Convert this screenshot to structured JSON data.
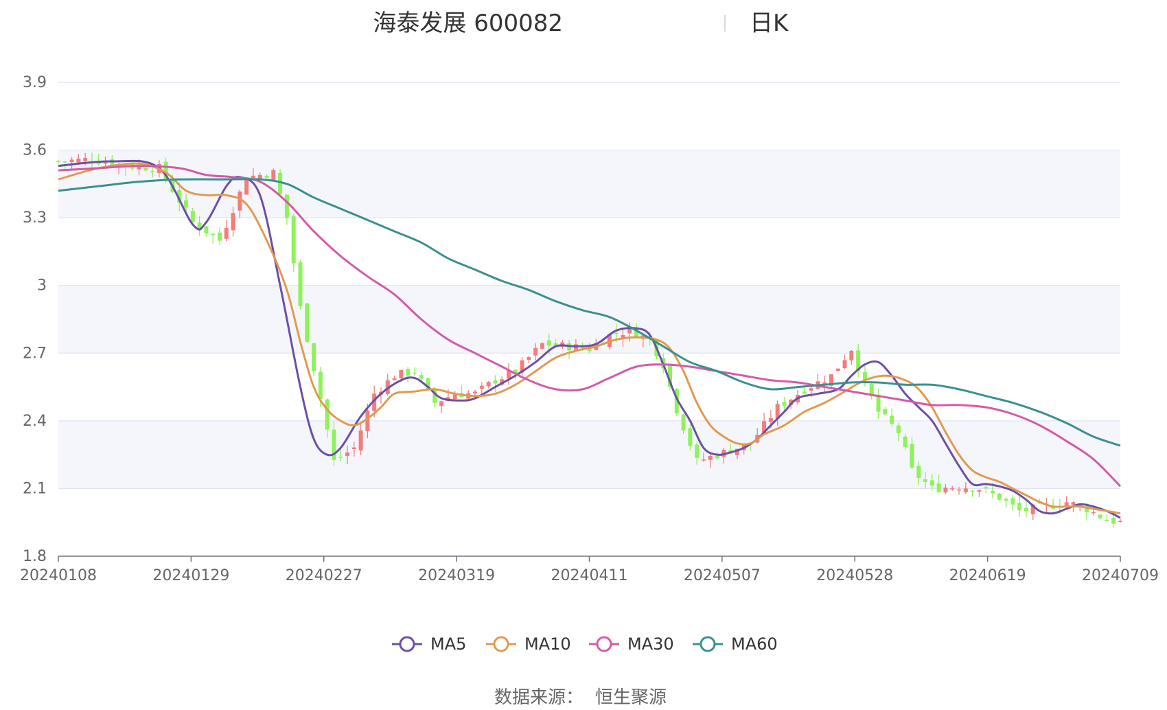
{
  "header": {
    "title": "海泰发展 600082",
    "period": "日K"
  },
  "footer": {
    "source_label": "数据来源：",
    "source_name": "恒生聚源"
  },
  "colors": {
    "up": "#f47c7c",
    "down": "#8ef25a",
    "MA5": "#6b4fa8",
    "MA10": "#e29a4f",
    "MA30": "#d45aa8",
    "MA60": "#3a9090",
    "grid": "#dfe4f2",
    "band": "#f5f6fb"
  },
  "chart_data": {
    "type": "candlestick",
    "title": "海泰发展 600082",
    "subtitle": "日K",
    "ylim": [
      1.8,
      3.9
    ],
    "y_ticks": [
      "3.9",
      "3.6",
      "3.3",
      "3",
      "2.7",
      "2.4",
      "2.1",
      "1.8"
    ],
    "x_tick_labels": [
      "20240108",
      "20240129",
      "20240227",
      "20240319",
      "20240411",
      "20240507",
      "20240528",
      "20240619",
      "20240709"
    ],
    "candles_count": 120,
    "close_path": [
      [
        0,
        3.55
      ],
      [
        5,
        3.56
      ],
      [
        10,
        3.53
      ],
      [
        15,
        3.52
      ],
      [
        20,
        3.28
      ],
      [
        24,
        3.2
      ],
      [
        28,
        3.48
      ],
      [
        32,
        3.5
      ],
      [
        34,
        3.3
      ],
      [
        36,
        2.9
      ],
      [
        39,
        2.5
      ],
      [
        41,
        2.22
      ],
      [
        44,
        2.28
      ],
      [
        47,
        2.52
      ],
      [
        50,
        2.6
      ],
      [
        53,
        2.62
      ],
      [
        56,
        2.48
      ],
      [
        59,
        2.52
      ],
      [
        62,
        2.52
      ],
      [
        65,
        2.58
      ],
      [
        68,
        2.62
      ],
      [
        72,
        2.74
      ],
      [
        76,
        2.73
      ],
      [
        79,
        2.72
      ],
      [
        82,
        2.78
      ],
      [
        85,
        2.8
      ],
      [
        88,
        2.76
      ],
      [
        90,
        2.65
      ],
      [
        92,
        2.45
      ],
      [
        95,
        2.22
      ],
      [
        99,
        2.26
      ],
      [
        103,
        2.3
      ],
      [
        107,
        2.46
      ],
      [
        111,
        2.54
      ],
      [
        115,
        2.6
      ],
      [
        118,
        2.72
      ],
      [
        120,
        2.56
      ],
      [
        122,
        2.44
      ],
      [
        125,
        2.35
      ],
      [
        127,
        2.18
      ],
      [
        130,
        2.1
      ],
      [
        134,
        2.11
      ],
      [
        137,
        2.1
      ],
      [
        140,
        2.06
      ],
      [
        143,
        2.0
      ],
      [
        147,
        2.02
      ],
      [
        150,
        2.04
      ],
      [
        153,
        2.01
      ],
      [
        156,
        1.96
      ],
      [
        158,
        1.95
      ]
    ],
    "series": [
      {
        "name": "MA5",
        "points": [
          [
            0,
            3.53
          ],
          [
            8,
            3.55
          ],
          [
            15,
            3.52
          ],
          [
            20,
            3.27
          ],
          [
            22,
            3.28
          ],
          [
            25,
            3.44
          ],
          [
            27,
            3.48
          ],
          [
            30,
            3.4
          ],
          [
            33,
            3.0
          ],
          [
            36,
            2.55
          ],
          [
            38,
            2.32
          ],
          [
            40,
            2.25
          ],
          [
            42,
            2.28
          ],
          [
            45,
            2.42
          ],
          [
            48,
            2.52
          ],
          [
            51,
            2.58
          ],
          [
            53,
            2.59
          ],
          [
            55,
            2.55
          ],
          [
            57,
            2.5
          ],
          [
            60,
            2.49
          ],
          [
            62,
            2.5
          ],
          [
            65,
            2.55
          ],
          [
            68,
            2.6
          ],
          [
            71,
            2.66
          ],
          [
            74,
            2.73
          ],
          [
            77,
            2.73
          ],
          [
            80,
            2.74
          ],
          [
            83,
            2.8
          ],
          [
            86,
            2.81
          ],
          [
            88,
            2.78
          ],
          [
            90,
            2.65
          ],
          [
            92,
            2.5
          ],
          [
            94,
            2.4
          ],
          [
            96,
            2.28
          ],
          [
            98,
            2.25
          ],
          [
            100,
            2.26
          ],
          [
            102,
            2.28
          ],
          [
            104,
            2.32
          ],
          [
            106,
            2.38
          ],
          [
            108,
            2.44
          ],
          [
            110,
            2.5
          ],
          [
            113,
            2.52
          ],
          [
            116,
            2.54
          ],
          [
            118,
            2.6
          ],
          [
            120,
            2.65
          ],
          [
            122,
            2.66
          ],
          [
            124,
            2.6
          ],
          [
            126,
            2.52
          ],
          [
            128,
            2.46
          ],
          [
            130,
            2.4
          ],
          [
            132,
            2.3
          ],
          [
            134,
            2.2
          ],
          [
            136,
            2.12
          ],
          [
            138,
            2.12
          ],
          [
            140,
            2.11
          ],
          [
            142,
            2.09
          ],
          [
            144,
            2.05
          ],
          [
            146,
            2.0
          ],
          [
            148,
            1.99
          ],
          [
            150,
            2.01
          ],
          [
            152,
            2.03
          ],
          [
            154,
            2.02
          ],
          [
            156,
            2.0
          ],
          [
            158,
            1.97
          ]
        ]
      },
      {
        "name": "MA10",
        "points": [
          [
            0,
            3.47
          ],
          [
            6,
            3.52
          ],
          [
            12,
            3.54
          ],
          [
            16,
            3.5
          ],
          [
            19,
            3.42
          ],
          [
            22,
            3.4
          ],
          [
            25,
            3.4
          ],
          [
            28,
            3.36
          ],
          [
            31,
            3.2
          ],
          [
            34,
            2.98
          ],
          [
            36,
            2.75
          ],
          [
            38,
            2.55
          ],
          [
            40,
            2.45
          ],
          [
            42,
            2.4
          ],
          [
            44,
            2.38
          ],
          [
            46,
            2.41
          ],
          [
            48,
            2.46
          ],
          [
            50,
            2.52
          ],
          [
            53,
            2.53
          ],
          [
            56,
            2.54
          ],
          [
            59,
            2.52
          ],
          [
            62,
            2.51
          ],
          [
            65,
            2.52
          ],
          [
            68,
            2.56
          ],
          [
            71,
            2.62
          ],
          [
            74,
            2.68
          ],
          [
            77,
            2.71
          ],
          [
            80,
            2.73
          ],
          [
            83,
            2.76
          ],
          [
            86,
            2.77
          ],
          [
            89,
            2.76
          ],
          [
            91,
            2.72
          ],
          [
            93,
            2.62
          ],
          [
            95,
            2.48
          ],
          [
            97,
            2.38
          ],
          [
            99,
            2.33
          ],
          [
            101,
            2.3
          ],
          [
            103,
            2.3
          ],
          [
            105,
            2.34
          ],
          [
            108,
            2.38
          ],
          [
            111,
            2.44
          ],
          [
            114,
            2.48
          ],
          [
            117,
            2.53
          ],
          [
            120,
            2.58
          ],
          [
            123,
            2.6
          ],
          [
            126,
            2.58
          ],
          [
            128,
            2.54
          ],
          [
            130,
            2.46
          ],
          [
            132,
            2.35
          ],
          [
            134,
            2.25
          ],
          [
            136,
            2.18
          ],
          [
            138,
            2.15
          ],
          [
            140,
            2.13
          ],
          [
            142,
            2.1
          ],
          [
            144,
            2.07
          ],
          [
            146,
            2.04
          ],
          [
            148,
            2.02
          ],
          [
            150,
            2.02
          ],
          [
            152,
            2.02
          ],
          [
            154,
            2.01
          ],
          [
            156,
            2.0
          ],
          [
            158,
            1.99
          ]
        ]
      },
      {
        "name": "MA30",
        "points": [
          [
            0,
            3.51
          ],
          [
            6,
            3.52
          ],
          [
            12,
            3.53
          ],
          [
            18,
            3.52
          ],
          [
            22,
            3.49
          ],
          [
            26,
            3.48
          ],
          [
            30,
            3.46
          ],
          [
            34,
            3.37
          ],
          [
            38,
            3.24
          ],
          [
            42,
            3.13
          ],
          [
            46,
            3.04
          ],
          [
            50,
            2.96
          ],
          [
            54,
            2.85
          ],
          [
            58,
            2.76
          ],
          [
            62,
            2.7
          ],
          [
            66,
            2.64
          ],
          [
            70,
            2.58
          ],
          [
            74,
            2.54
          ],
          [
            78,
            2.54
          ],
          [
            82,
            2.59
          ],
          [
            86,
            2.64
          ],
          [
            90,
            2.65
          ],
          [
            94,
            2.64
          ],
          [
            98,
            2.62
          ],
          [
            102,
            2.6
          ],
          [
            106,
            2.58
          ],
          [
            110,
            2.57
          ],
          [
            114,
            2.55
          ],
          [
            118,
            2.53
          ],
          [
            122,
            2.51
          ],
          [
            126,
            2.49
          ],
          [
            130,
            2.47
          ],
          [
            134,
            2.47
          ],
          [
            138,
            2.46
          ],
          [
            142,
            2.43
          ],
          [
            146,
            2.38
          ],
          [
            150,
            2.31
          ],
          [
            154,
            2.23
          ],
          [
            158,
            2.11
          ]
        ]
      },
      {
        "name": "MA60",
        "points": [
          [
            0,
            3.42
          ],
          [
            6,
            3.44
          ],
          [
            12,
            3.46
          ],
          [
            18,
            3.47
          ],
          [
            24,
            3.47
          ],
          [
            30,
            3.47
          ],
          [
            34,
            3.45
          ],
          [
            38,
            3.39
          ],
          [
            42,
            3.34
          ],
          [
            46,
            3.29
          ],
          [
            50,
            3.24
          ],
          [
            54,
            3.19
          ],
          [
            58,
            3.12
          ],
          [
            62,
            3.07
          ],
          [
            66,
            3.02
          ],
          [
            70,
            2.98
          ],
          [
            74,
            2.93
          ],
          [
            78,
            2.89
          ],
          [
            82,
            2.86
          ],
          [
            86,
            2.8
          ],
          [
            90,
            2.73
          ],
          [
            94,
            2.66
          ],
          [
            98,
            2.62
          ],
          [
            102,
            2.57
          ],
          [
            106,
            2.54
          ],
          [
            110,
            2.55
          ],
          [
            114,
            2.56
          ],
          [
            118,
            2.57
          ],
          [
            122,
            2.57
          ],
          [
            126,
            2.56
          ],
          [
            130,
            2.56
          ],
          [
            134,
            2.54
          ],
          [
            138,
            2.51
          ],
          [
            142,
            2.48
          ],
          [
            146,
            2.44
          ],
          [
            150,
            2.39
          ],
          [
            154,
            2.33
          ],
          [
            158,
            2.29
          ]
        ]
      }
    ]
  }
}
